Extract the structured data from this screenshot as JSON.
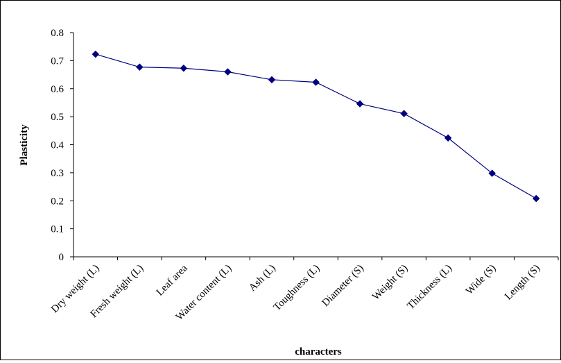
{
  "chart_data": {
    "type": "line",
    "title": "",
    "xlabel": "characters",
    "ylabel": "Plasticity",
    "ylim": [
      0,
      0.8
    ],
    "yticks": [
      "0",
      "0.1",
      "0.2",
      "0.3",
      "0.4",
      "0.5",
      "0.6",
      "0.7",
      "0.8"
    ],
    "grid": false,
    "legend": false,
    "categories": [
      "Dry weight (L)",
      "Fresh weight (L)",
      "Leaf area",
      "Water content (L)",
      "Ash (L)",
      "Toughness (L)",
      "Diameter (S)",
      "Weight (S)",
      "Thickness (L)",
      "Wide (S)",
      "Length (S)"
    ],
    "series": [
      {
        "values": [
          0.723,
          0.677,
          0.673,
          0.66,
          0.632,
          0.623,
          0.546,
          0.511,
          0.424,
          0.298,
          0.208
        ],
        "color": "#000080",
        "marker": "diamond"
      }
    ]
  }
}
